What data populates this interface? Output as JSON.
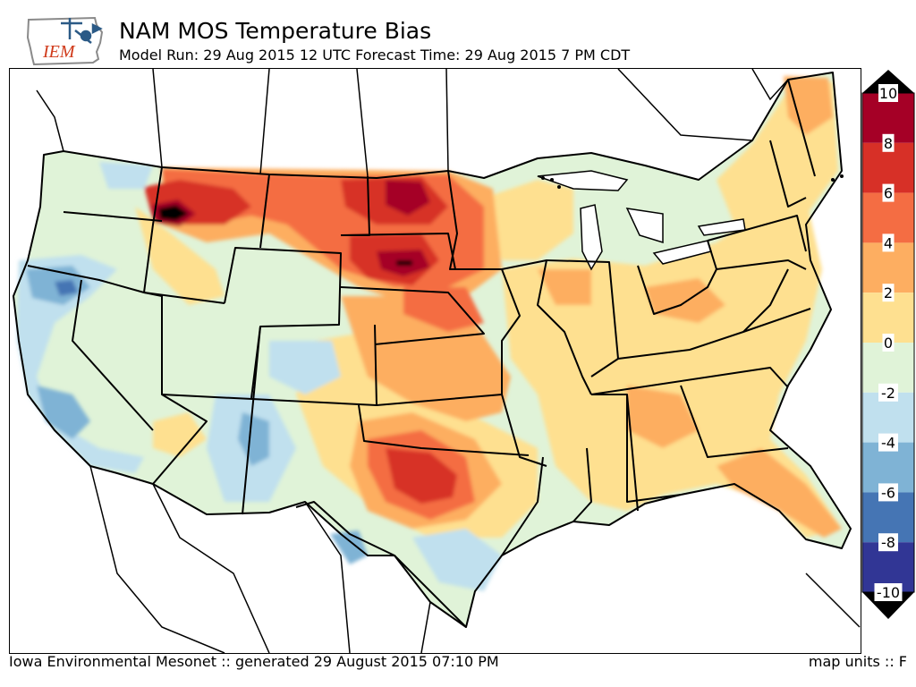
{
  "header": {
    "logo_text": "IEM",
    "title": "NAM MOS Temperature Bias",
    "subtitle": "Model Run: 29 Aug 2015 12 UTC Forecast Time: 29 Aug 2015 7 PM CDT"
  },
  "footer": {
    "credit": "Iowa Environmental Mesonet :: generated 29 August 2015 07:10 PM",
    "units": "map units :: F"
  },
  "legend": {
    "ticks": [
      "10",
      "8",
      "6",
      "4",
      "2",
      "0",
      "-2",
      "-4",
      "-6",
      "-8",
      "-10"
    ],
    "bins": [
      {
        "from": 8,
        "to": 10,
        "color": "#a50026"
      },
      {
        "from": 6,
        "to": 8,
        "color": "#d73027"
      },
      {
        "from": 4,
        "to": 6,
        "color": "#f46d43"
      },
      {
        "from": 2,
        "to": 4,
        "color": "#fdae61"
      },
      {
        "from": 0,
        "to": 2,
        "color": "#fee090"
      },
      {
        "from": -2,
        "to": 0,
        "color": "#e0f3d8"
      },
      {
        "from": -4,
        "to": -2,
        "color": "#c0e0ee"
      },
      {
        "from": -6,
        "to": -4,
        "color": "#7fb3d5"
      },
      {
        "from": -8,
        "to": -6,
        "color": "#4575b4"
      },
      {
        "from": -10,
        "to": -8,
        "color": "#313695"
      }
    ],
    "over_color": "#000000",
    "under_color": "#000000"
  }
}
